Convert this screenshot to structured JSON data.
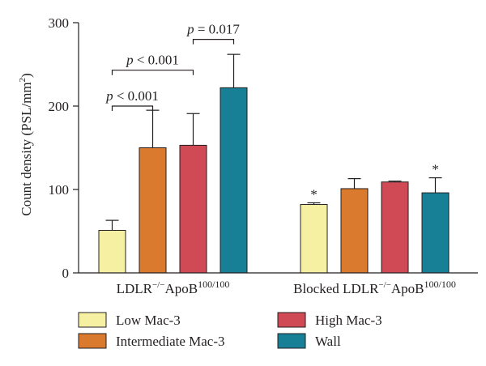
{
  "chart_data": {
    "type": "bar",
    "ylabel_main": "Count density (PSL/mm",
    "ylabel_sup": "2",
    "ylabel_end": ")",
    "ylim": [
      0,
      300
    ],
    "yticks": [
      "0",
      "100",
      "200",
      "300"
    ],
    "grid": false,
    "legend_position": "bottom",
    "groups": [
      {
        "label_main": "LDLR",
        "label_sup1": "−/−",
        "label_mid": "ApoB",
        "label_sup2": "100/100"
      },
      {
        "label_main": "Blocked LDLR",
        "label_sup1": "−/−",
        "label_mid": "ApoB",
        "label_sup2": "100/100"
      }
    ],
    "series": [
      {
        "name": "Low Mac-3",
        "color": "#f6f0a2",
        "values": [
          51,
          82
        ],
        "errors": [
          12,
          2
        ],
        "marks": [
          "",
          "*"
        ]
      },
      {
        "name": "Intermediate Mac-3",
        "color": "#d97a2e",
        "values": [
          150,
          101
        ],
        "errors": [
          45,
          12
        ],
        "marks": [
          "",
          ""
        ]
      },
      {
        "name": "High Mac-3",
        "color": "#cf4a55",
        "values": [
          153,
          109
        ],
        "errors": [
          38,
          1
        ],
        "marks": [
          "",
          ""
        ]
      },
      {
        "name": "Wall",
        "color": "#177f96",
        "values": [
          222,
          96
        ],
        "errors": [
          40,
          18
        ],
        "marks": [
          "",
          "*"
        ]
      }
    ],
    "comparisons": [
      {
        "from_series": 0,
        "to_series": 1,
        "group": 0,
        "level": 200,
        "label_p": "p",
        "label_rest": " < 0.001"
      },
      {
        "from_series": 0,
        "to_series": 2,
        "group": 0,
        "level": 243,
        "label_p": "p",
        "label_rest": " < 0.001"
      },
      {
        "from_series": 2,
        "to_series": 3,
        "group": 0,
        "level": 280,
        "label_p": "p",
        "label_rest": " = 0.017"
      }
    ]
  }
}
